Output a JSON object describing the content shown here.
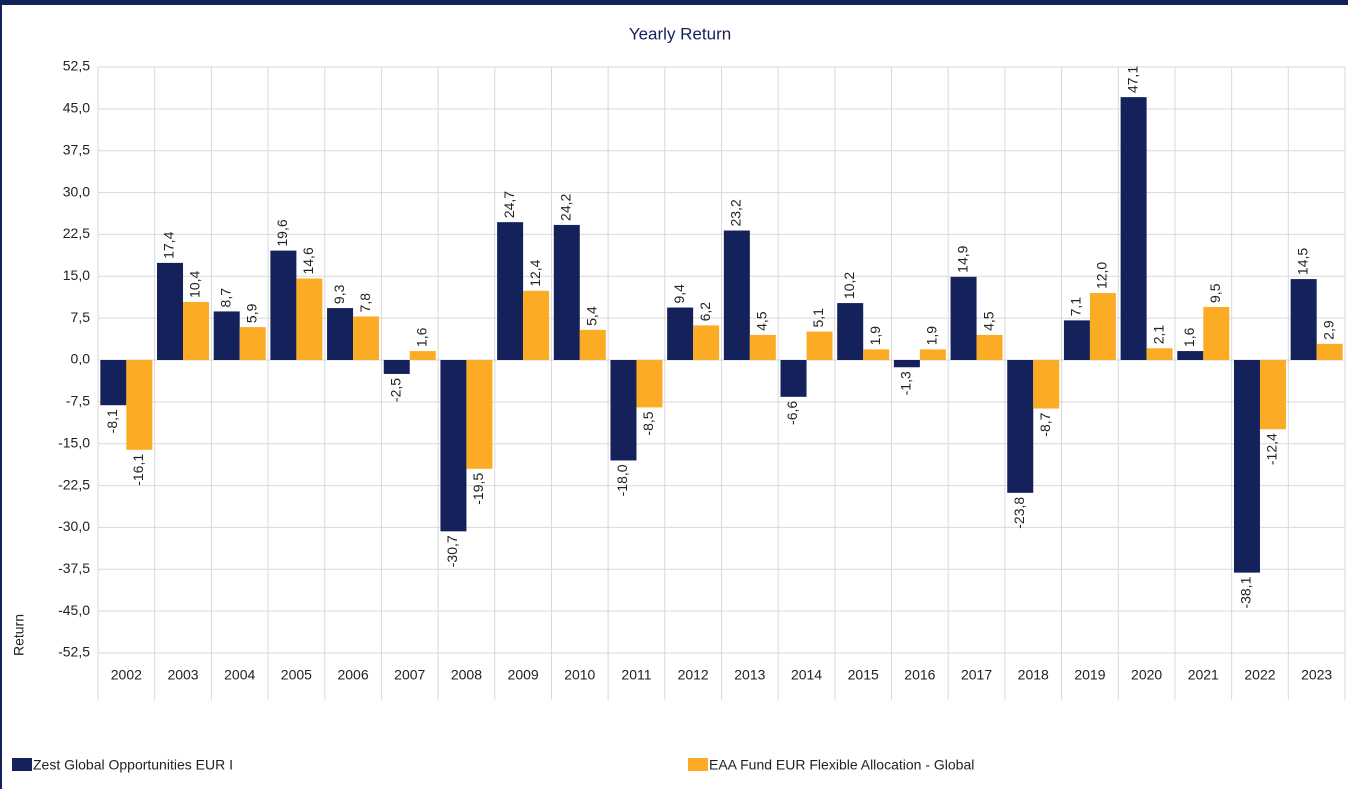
{
  "chart_data": {
    "type": "bar",
    "title": "Yearly Return",
    "y_label": "Return",
    "categories": [
      "2002",
      "2003",
      "2004",
      "2005",
      "2006",
      "2007",
      "2008",
      "2009",
      "2010",
      "2011",
      "2012",
      "2013",
      "2014",
      "2015",
      "2016",
      "2017",
      "2018",
      "2019",
      "2020",
      "2021",
      "2022",
      "2023"
    ],
    "series": [
      {
        "name": "Zest Global Opportunities EUR I",
        "color": "#14215b",
        "values": [
          -8.1,
          17.4,
          8.7,
          19.6,
          9.3,
          -2.5,
          -30.7,
          24.7,
          24.2,
          -18.0,
          9.4,
          23.2,
          -6.6,
          10.2,
          -1.3,
          14.9,
          -23.8,
          7.1,
          47.1,
          1.6,
          -38.1,
          14.5
        ],
        "value_labels": [
          "-8,1",
          "17,4",
          "8,7",
          "19,6",
          "9,3",
          "-2,5",
          "-30,7",
          "24,7",
          "24,2",
          "-18,0",
          "9,4",
          "23,2",
          "-6,6",
          "10,2",
          "-1,3",
          "14,9",
          "-23,8",
          "7,1",
          "47,1",
          "1,6",
          "-38,1",
          "14,5"
        ]
      },
      {
        "name": "EAA Fund EUR Flexible Allocation - Global",
        "color": "#fbac24",
        "values": [
          -16.1,
          10.4,
          5.9,
          14.6,
          7.8,
          1.6,
          -19.5,
          12.4,
          5.4,
          -8.5,
          6.2,
          4.5,
          5.1,
          1.9,
          1.9,
          4.5,
          -8.7,
          12.0,
          2.1,
          9.5,
          -12.4,
          2.9
        ],
        "value_labels": [
          "-16,1",
          "10,4",
          "5,9",
          "14,6",
          "7,8",
          "1,6",
          "-19,5",
          "12,4",
          "5,4",
          "-8,5",
          "6,2",
          "4,5",
          "5,1",
          "1,9",
          "1,9",
          "4,5",
          "-8,7",
          "12,0",
          "2,1",
          "9,5",
          "-12,4",
          "2,9"
        ]
      }
    ],
    "ylim": [
      -52.5,
      52.5
    ],
    "yticks": [
      {
        "value": 52.5,
        "label": "52,5"
      },
      {
        "value": 45,
        "label": "45,0"
      },
      {
        "value": 37.5,
        "label": "37,5"
      },
      {
        "value": 30,
        "label": "30,0"
      },
      {
        "value": 22.5,
        "label": "22,5"
      },
      {
        "value": 15,
        "label": "15,0"
      },
      {
        "value": 7.5,
        "label": "7,5"
      },
      {
        "value": 0,
        "label": "0,0"
      },
      {
        "value": -7.5,
        "label": "-7,5"
      },
      {
        "value": -15,
        "label": "-15,0"
      },
      {
        "value": -22.5,
        "label": "-22,5"
      },
      {
        "value": -30,
        "label": "-30,0"
      },
      {
        "value": -37.5,
        "label": "-37,5"
      },
      {
        "value": -45,
        "label": "-45,0"
      },
      {
        "value": -52.5,
        "label": "-52,5"
      }
    ],
    "grid": true,
    "legend": "bottom"
  }
}
